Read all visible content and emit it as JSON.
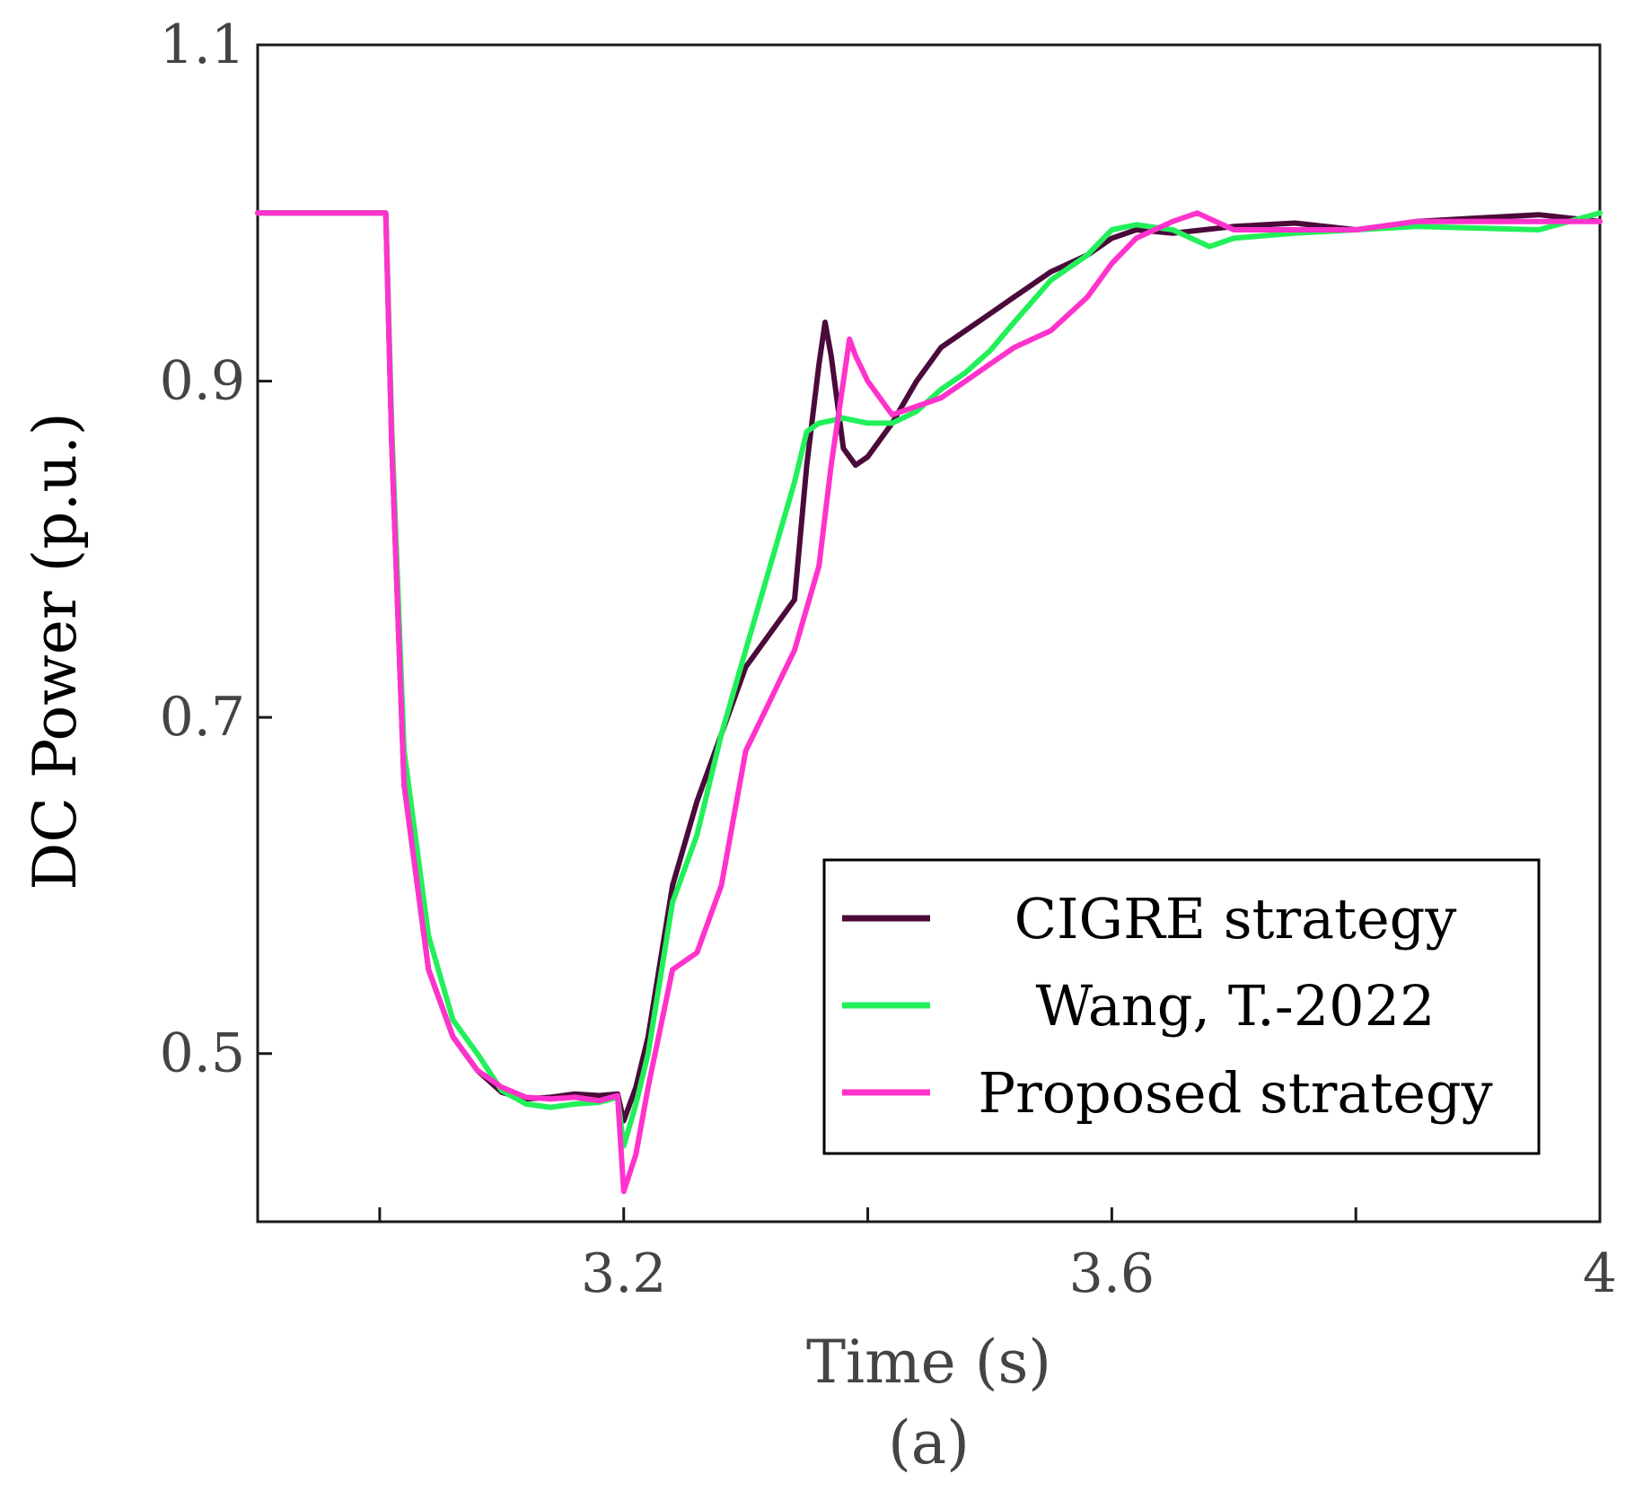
{
  "chart_data": {
    "type": "line",
    "title": "",
    "xlabel": "Time (s)",
    "ylabel": "DC Power (p.u.)",
    "caption": "(a)",
    "xlim": [
      2.9,
      4.0
    ],
    "ylim": [
      0.4,
      1.1
    ],
    "xticks": [
      3.0,
      3.2,
      3.4,
      3.6,
      3.8,
      4.0
    ],
    "xtick_labels": [
      "",
      "3.2",
      "",
      "3.6",
      "",
      "4"
    ],
    "yticks": [
      0.5,
      0.7,
      0.9,
      1.1
    ],
    "ytick_labels": [
      "0.5",
      "0.7",
      "0.9",
      "1.1"
    ],
    "grid": false,
    "legend_position": "bottom-right",
    "series": [
      {
        "name": "CIGRE strategy",
        "color": "#4a0a3a",
        "x": [
          2.9,
          2.92,
          2.94,
          2.96,
          2.98,
          3.0,
          3.005,
          3.01,
          3.02,
          3.04,
          3.06,
          3.08,
          3.1,
          3.12,
          3.14,
          3.16,
          3.18,
          3.195,
          3.2,
          3.21,
          3.22,
          3.24,
          3.26,
          3.28,
          3.3,
          3.32,
          3.34,
          3.35,
          3.36,
          3.365,
          3.37,
          3.38,
          3.39,
          3.4,
          3.42,
          3.44,
          3.46,
          3.48,
          3.5,
          3.52,
          3.55,
          3.58,
          3.6,
          3.62,
          3.65,
          3.7,
          3.75,
          3.8,
          3.85,
          3.9,
          3.95,
          4.0
        ],
        "values": [
          1.0,
          1.0,
          1.0,
          1.0,
          1.0,
          1.0,
          1.0,
          0.86,
          0.66,
          0.55,
          0.51,
          0.49,
          0.477,
          0.473,
          0.474,
          0.476,
          0.475,
          0.476,
          0.46,
          0.48,
          0.51,
          0.6,
          0.65,
          0.69,
          0.73,
          0.75,
          0.77,
          0.85,
          0.91,
          0.935,
          0.915,
          0.86,
          0.85,
          0.855,
          0.875,
          0.9,
          0.92,
          0.93,
          0.94,
          0.95,
          0.965,
          0.975,
          0.985,
          0.99,
          0.988,
          0.992,
          0.994,
          0.99,
          0.995,
          0.997,
          0.999,
          0.995
        ]
      },
      {
        "name": "Wang, T.-2022",
        "color": "#22f05a",
        "x": [
          2.9,
          2.92,
          2.94,
          2.96,
          2.98,
          3.0,
          3.005,
          3.01,
          3.02,
          3.04,
          3.06,
          3.08,
          3.1,
          3.12,
          3.14,
          3.16,
          3.18,
          3.195,
          3.2,
          3.21,
          3.22,
          3.24,
          3.26,
          3.28,
          3.3,
          3.32,
          3.34,
          3.35,
          3.36,
          3.38,
          3.4,
          3.42,
          3.44,
          3.46,
          3.48,
          3.5,
          3.52,
          3.55,
          3.58,
          3.6,
          3.62,
          3.65,
          3.68,
          3.7,
          3.75,
          3.8,
          3.85,
          3.9,
          3.95,
          4.0
        ],
        "values": [
          1.0,
          1.0,
          1.0,
          1.0,
          1.0,
          1.0,
          1.0,
          0.87,
          0.68,
          0.57,
          0.52,
          0.5,
          0.478,
          0.47,
          0.468,
          0.47,
          0.471,
          0.474,
          0.445,
          0.47,
          0.5,
          0.59,
          0.63,
          0.69,
          0.74,
          0.79,
          0.84,
          0.87,
          0.875,
          0.878,
          0.875,
          0.875,
          0.882,
          0.895,
          0.905,
          0.918,
          0.935,
          0.96,
          0.975,
          0.99,
          0.993,
          0.99,
          0.98,
          0.985,
          0.988,
          0.99,
          0.992,
          0.991,
          0.99,
          1.0
        ]
      },
      {
        "name": "Proposed strategy",
        "color": "#ff33cc",
        "x": [
          2.9,
          2.92,
          2.94,
          2.96,
          2.98,
          3.0,
          3.005,
          3.01,
          3.02,
          3.04,
          3.06,
          3.08,
          3.1,
          3.12,
          3.14,
          3.16,
          3.18,
          3.195,
          3.2,
          3.21,
          3.22,
          3.24,
          3.26,
          3.28,
          3.3,
          3.32,
          3.34,
          3.36,
          3.37,
          3.38,
          3.385,
          3.39,
          3.4,
          3.42,
          3.44,
          3.46,
          3.48,
          3.5,
          3.52,
          3.55,
          3.58,
          3.6,
          3.62,
          3.65,
          3.67,
          3.7,
          3.75,
          3.8,
          3.85,
          3.9,
          3.95,
          4.0
        ],
        "values": [
          1.0,
          1.0,
          1.0,
          1.0,
          1.0,
          1.0,
          1.0,
          0.86,
          0.66,
          0.55,
          0.51,
          0.49,
          0.48,
          0.474,
          0.473,
          0.474,
          0.472,
          0.475,
          0.418,
          0.44,
          0.48,
          0.55,
          0.56,
          0.6,
          0.68,
          0.71,
          0.74,
          0.79,
          0.85,
          0.9,
          0.925,
          0.915,
          0.9,
          0.88,
          0.885,
          0.89,
          0.9,
          0.91,
          0.92,
          0.93,
          0.95,
          0.97,
          0.985,
          0.995,
          1.0,
          0.99,
          0.99,
          0.99,
          0.995,
          0.995,
          0.995,
          0.995
        ]
      }
    ]
  }
}
